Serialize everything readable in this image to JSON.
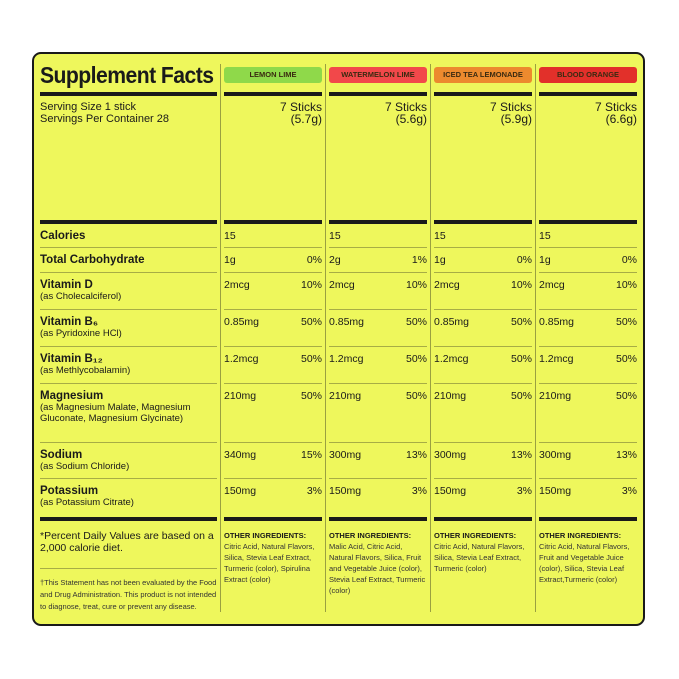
{
  "title": "Supplement Facts",
  "serving_size": "Serving Size 1 stick",
  "servings_per_container": "Servings Per Container 28",
  "flavors": [
    {
      "name": "LEMON LIME",
      "color": "#8fd94a",
      "sticks": "7 Sticks",
      "weight": "(5.7g)"
    },
    {
      "name": "WATERMELON LIME",
      "color": "#f2484a",
      "sticks": "7 Sticks",
      "weight": "(5.6g)"
    },
    {
      "name": "ICED TEA LEMONADE",
      "color": "#ec8a2e",
      "sticks": "7 Sticks",
      "weight": "(5.9g)"
    },
    {
      "name": "BLOOD ORANGE",
      "color": "#e2302a",
      "sticks": "7 Sticks",
      "weight": "(6.6g)"
    }
  ],
  "nutrients": [
    {
      "name": "Calories",
      "sub": "",
      "values": [
        [
          "15",
          ""
        ],
        [
          "15",
          ""
        ],
        [
          "15",
          ""
        ],
        [
          "15",
          ""
        ]
      ]
    },
    {
      "name": "Total Carbohydrate",
      "sub": "",
      "values": [
        [
          "1g",
          "0%"
        ],
        [
          "2g",
          "1%"
        ],
        [
          "1g",
          "0%"
        ],
        [
          "1g",
          "0%"
        ]
      ]
    },
    {
      "name": "Vitamin D",
      "sub": "(as Cholecalciferol)",
      "values": [
        [
          "2mcg",
          "10%"
        ],
        [
          "2mcg",
          "10%"
        ],
        [
          "2mcg",
          "10%"
        ],
        [
          "2mcg",
          "10%"
        ]
      ]
    },
    {
      "name": "Vitamin B₆",
      "sub": "(as Pyridoxine HCl)",
      "values": [
        [
          "0.85mg",
          "50%"
        ],
        [
          "0.85mg",
          "50%"
        ],
        [
          "0.85mg",
          "50%"
        ],
        [
          "0.85mg",
          "50%"
        ]
      ]
    },
    {
      "name": "Vitamin B₁₂",
      "sub": "(as Methlycobalamin)",
      "values": [
        [
          "1.2mcg",
          "50%"
        ],
        [
          "1.2mcg",
          "50%"
        ],
        [
          "1.2mcg",
          "50%"
        ],
        [
          "1.2mcg",
          "50%"
        ]
      ]
    },
    {
      "name": "Magnesium",
      "sub": "(as Magnesium Malate, Magnesium Gluconate, Magnesium Glycinate)",
      "values": [
        [
          "210mg",
          "50%"
        ],
        [
          "210mg",
          "50%"
        ],
        [
          "210mg",
          "50%"
        ],
        [
          "210mg",
          "50%"
        ]
      ]
    },
    {
      "name": "Sodium",
      "sub": "(as Sodium Chloride)",
      "values": [
        [
          "340mg",
          "15%"
        ],
        [
          "300mg",
          "13%"
        ],
        [
          "300mg",
          "13%"
        ],
        [
          "300mg",
          "13%"
        ]
      ]
    },
    {
      "name": "Potassium",
      "sub": "(as Potassium Citrate)",
      "values": [
        [
          "150mg",
          "3%"
        ],
        [
          "150mg",
          "3%"
        ],
        [
          "150mg",
          "3%"
        ],
        [
          "150mg",
          "3%"
        ]
      ]
    }
  ],
  "daily_value_note": "*Percent Daily Values are based on a 2,000 calorie diet.",
  "disclaimer": "†This Statement has not been evaluated by the Food and Drug Administration. This product is not intended to diagnose, treat, cure or prevent any disease.",
  "other_ingredients_label": "OTHER INGREDIENTS:",
  "other_ingredients": [
    "Citric Acid, Natural Flavors, Silica, Stevia Leaf Extract, Turmeric (color), Spirulina Extract (color)",
    "Malic Acid, Citric Acid, Natural Flavors, Silica, Fruit and Vegetable Juice (color), Stevia Leaf Extract, Turmeric (color)",
    "Citric Acid, Natural Flavors, Silica, Stevia Leaf Extract, Turmeric (color)",
    "Citric Acid, Natural Flavors, Fruit and Vegetable Juice (color), Silica, Stevia Leaf Extract,Turmeric (color)"
  ]
}
